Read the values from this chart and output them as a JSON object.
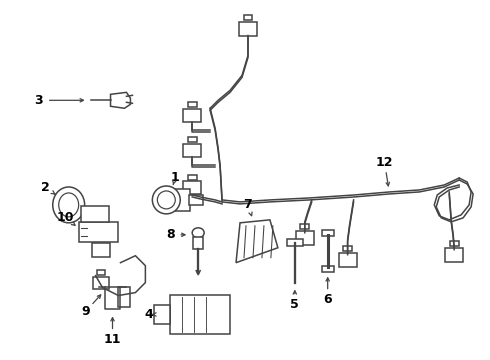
{
  "background_color": "#ffffff",
  "line_color": "#444444",
  "text_color": "#000000",
  "fig_width": 4.9,
  "fig_height": 3.6,
  "dpi": 100
}
